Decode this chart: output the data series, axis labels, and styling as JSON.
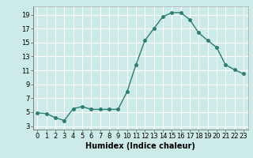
{
  "x": [
    0,
    1,
    2,
    3,
    4,
    5,
    6,
    7,
    8,
    9,
    10,
    11,
    12,
    13,
    14,
    15,
    16,
    17,
    18,
    19,
    20,
    21,
    22,
    23
  ],
  "y": [
    4.9,
    4.8,
    4.2,
    3.8,
    5.5,
    5.8,
    5.4,
    5.4,
    5.4,
    5.4,
    7.9,
    11.8,
    15.3,
    17.0,
    18.7,
    19.3,
    19.3,
    18.3,
    16.4,
    15.3,
    14.3,
    11.8,
    11.1,
    10.5
  ],
  "line_color": "#2e7d6e",
  "marker": "o",
  "markersize": 2.5,
  "linewidth": 1.0,
  "bg_color": "#cceae7",
  "grid_color": "#ffffff",
  "xlabel": "Humidex (Indice chaleur)",
  "xlim": [
    -0.5,
    23.5
  ],
  "ylim": [
    2.5,
    20.2
  ],
  "xticks": [
    0,
    1,
    2,
    3,
    4,
    5,
    6,
    7,
    8,
    9,
    10,
    11,
    12,
    13,
    14,
    15,
    16,
    17,
    18,
    19,
    20,
    21,
    22,
    23
  ],
  "yticks": [
    3,
    5,
    7,
    9,
    11,
    13,
    15,
    17,
    19
  ],
  "xlabel_fontsize": 7,
  "tick_fontsize": 6
}
